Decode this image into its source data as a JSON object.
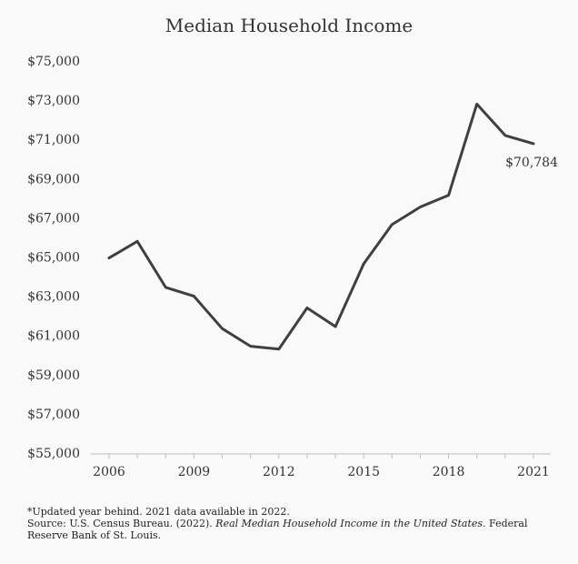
{
  "chart_data": {
    "type": "line",
    "title": "Median Household Income",
    "x": [
      2006,
      2007,
      2008,
      2009,
      2010,
      2011,
      2012,
      2013,
      2014,
      2015,
      2016,
      2017,
      2018,
      2019,
      2020,
      2021
    ],
    "series": [
      {
        "values": [
          64950,
          65800,
          63450,
          63000,
          61350,
          60450,
          60300,
          62400,
          61450,
          64650,
          66650,
          67550,
          68150,
          72800,
          71200,
          70784
        ]
      }
    ],
    "x_ticks": [
      2006,
      2009,
      2012,
      2015,
      2018,
      2021
    ],
    "x_tick_labels": [
      "2006",
      "2009",
      "2012",
      "2015",
      "2018",
      "2021"
    ],
    "y_ticks": [
      55000,
      57000,
      59000,
      61000,
      63000,
      65000,
      67000,
      69000,
      71000,
      73000,
      75000
    ],
    "y_tick_labels": [
      "$55,000",
      "$57,000",
      "$59,000",
      "$61,000",
      "$63,000",
      "$65,000",
      "$67,000",
      "$69,000",
      "$71,000",
      "$73,000",
      "$75,000"
    ],
    "ylim": [
      55000,
      75000
    ],
    "xlim": [
      2006,
      2021
    ],
    "end_label": "$70,784",
    "grid": false,
    "line_color": "#3f3f3f"
  },
  "footnotes": {
    "note": "*Updated year behind. 2021 data available in 2022.",
    "source_prefix": "Source: U.S. Census Bureau. (2022). ",
    "source_title": "Real Median Household Income in the United States",
    "source_suffix": ". Federal Reserve Bank of St. Louis."
  }
}
